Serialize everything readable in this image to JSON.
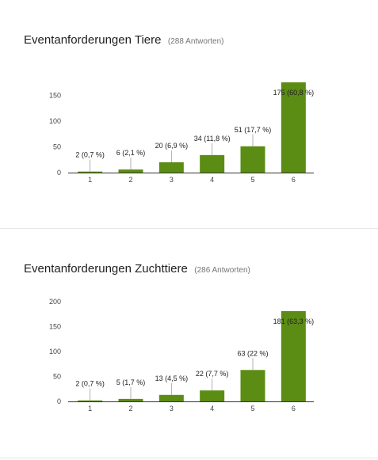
{
  "chart_data": [
    {
      "type": "bar",
      "title": "Eventanforderungen Tiere",
      "response_count": "(288 Antworten)",
      "categories": [
        "1",
        "2",
        "3",
        "4",
        "5",
        "6"
      ],
      "values": [
        2,
        6,
        20,
        34,
        51,
        175
      ],
      "data_labels": [
        "2 (0,7 %)",
        "6 (2,1 %)",
        "20 (6,9 %)",
        "34 (11,8 %)",
        "51 (17,7 %)",
        "175 (60,8 %)"
      ],
      "yticks": [
        0,
        50,
        100,
        150
      ],
      "ylim": [
        0,
        175
      ],
      "bar_color": "#5b8c13",
      "grid": false
    },
    {
      "type": "bar",
      "title": "Eventanforderungen Zuchttiere",
      "response_count": "(286 Antworten)",
      "categories": [
        "1",
        "2",
        "3",
        "4",
        "5",
        "6"
      ],
      "values": [
        2,
        5,
        13,
        22,
        63,
        181
      ],
      "data_labels": [
        "2 (0,7 %)",
        "5 (1,7 %)",
        "13 (4,5 %)",
        "22 (7,7 %)",
        "63 (22 %)",
        "181 (63,3 %)"
      ],
      "yticks": [
        0,
        50,
        100,
        150,
        200
      ],
      "ylim": [
        0,
        200
      ],
      "bar_color": "#5b8c13",
      "grid": false
    }
  ]
}
